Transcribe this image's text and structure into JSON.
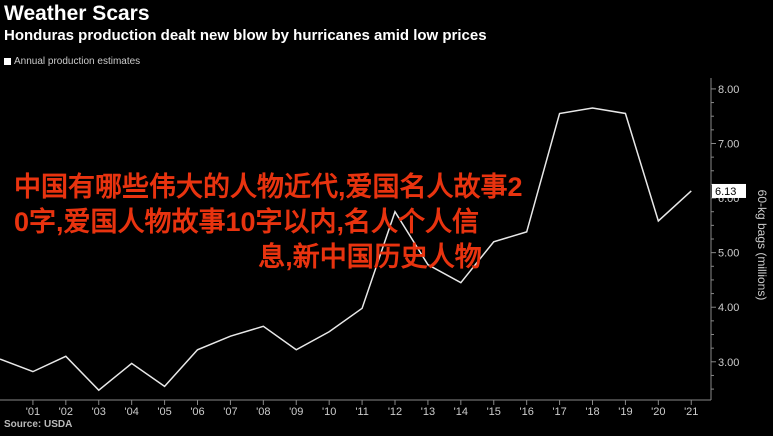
{
  "header": {
    "title": "Weather Scars",
    "subtitle": "Honduras production dealt new blow by hurricanes amid low prices",
    "legend_label": "Annual production estimates",
    "source": "Source: USDA"
  },
  "overlay": {
    "line1": "中国有哪些伟大的人物近代,爱国名人故事2",
    "line2": "0字,爱国人物故事10字以内,名人个人信",
    "line3": "息,新中国历史人物"
  },
  "chart_data": {
    "type": "line",
    "title": "Weather Scars",
    "subtitle": "Honduras production dealt new blow by hurricanes amid low prices",
    "ylabel": "60-kg bags (millions)",
    "ylim": [
      2.3,
      8.2
    ],
    "yticks": [
      "3.00",
      "4.00",
      "5.00",
      "6.00",
      "7.00",
      "8.00"
    ],
    "ytick_values": [
      3,
      4,
      5,
      6,
      7,
      8
    ],
    "xticks": [
      "'01",
      "'02",
      "'03",
      "'04",
      "'05",
      "'06",
      "'07",
      "'08",
      "'09",
      "'10",
      "'11",
      "'12",
      "'13",
      "'14",
      "'15",
      "'16",
      "'17",
      "'18",
      "'19",
      "'20",
      "'21"
    ],
    "xtick_values": [
      2001,
      2002,
      2003,
      2004,
      2005,
      2006,
      2007,
      2008,
      2009,
      2010,
      2011,
      2012,
      2013,
      2014,
      2015,
      2016,
      2017,
      2018,
      2019,
      2020,
      2021
    ],
    "xlim": [
      2000,
      2021.6
    ],
    "series": [
      {
        "name": "Annual production estimates",
        "x": [
          2000,
          2001,
          2002,
          2003,
          2004,
          2005,
          2006,
          2007,
          2008,
          2009,
          2010,
          2011,
          2012,
          2013,
          2014,
          2015,
          2016,
          2017,
          2018,
          2019,
          2020,
          2021
        ],
        "y": [
          3.05,
          2.82,
          3.1,
          2.48,
          2.97,
          2.55,
          3.22,
          3.47,
          3.65,
          3.22,
          3.55,
          3.98,
          5.75,
          4.78,
          4.45,
          5.2,
          5.38,
          7.55,
          7.65,
          7.55,
          5.58,
          6.13
        ]
      }
    ],
    "last_value_label": "6.13",
    "grid": false,
    "legend_position": "top-left"
  }
}
